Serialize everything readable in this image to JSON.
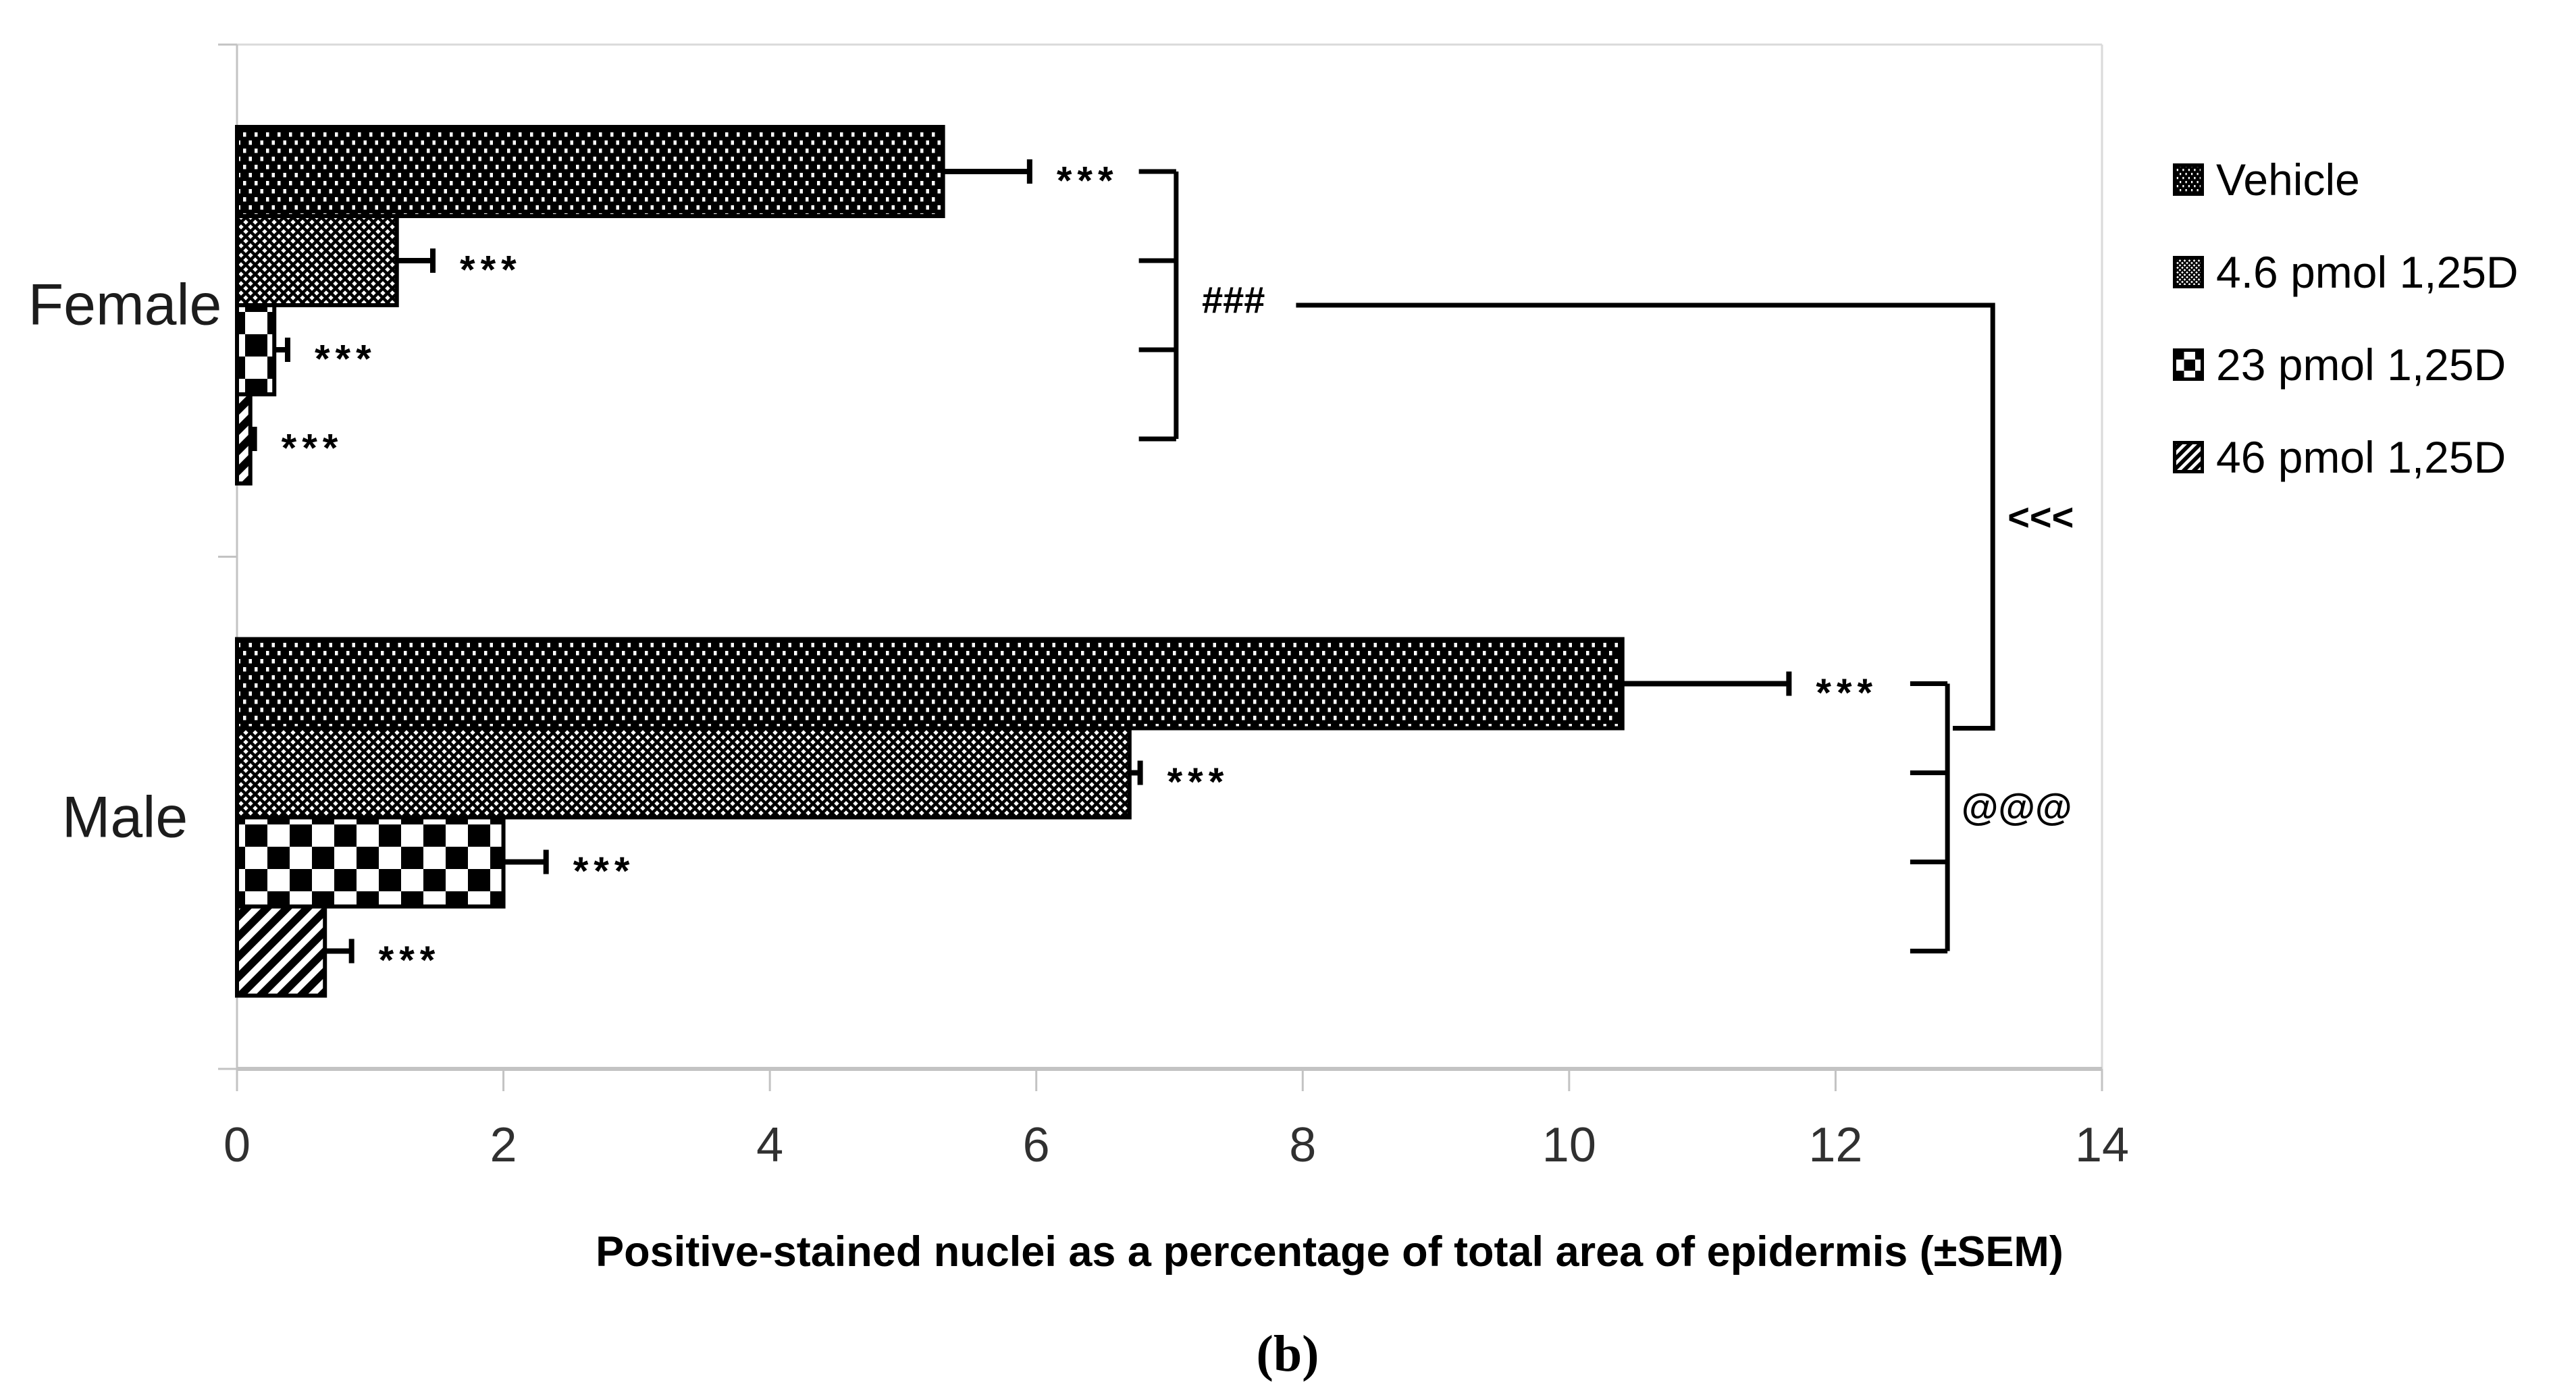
{
  "figure": {
    "caption": "(b)"
  },
  "chart_data": {
    "type": "bar",
    "orientation": "horizontal",
    "title": "Positive-stained nuclei as a percentage of total area of epidermis (±SEM)",
    "categories": [
      "Female",
      "Male"
    ],
    "series": [
      {
        "name": "Vehicle",
        "pattern": "dots-on-black",
        "values": [
          5.3,
          10.4
        ],
        "sem": [
          0.65,
          1.25
        ],
        "sig": [
          "***",
          "***"
        ]
      },
      {
        "name": "4.6 pmol 1,25D",
        "pattern": "fine-crosshatch",
        "values": [
          1.2,
          6.7
        ],
        "sem": [
          0.27,
          0.08
        ],
        "sig": [
          "***",
          "***"
        ]
      },
      {
        "name": "23 pmol 1,25D",
        "pattern": "checkerboard",
        "values": [
          0.28,
          2.0
        ],
        "sem": [
          0.1,
          0.32
        ],
        "sig": [
          "***",
          "***"
        ]
      },
      {
        "name": "46 pmol 1,25D",
        "pattern": "diagonal-stripes",
        "values": [
          0.1,
          0.66
        ],
        "sem": [
          0.03,
          0.2
        ],
        "sig": [
          "***",
          "***"
        ]
      }
    ],
    "x_axis": {
      "min": 0,
      "max": 14,
      "tick_step": 2,
      "ticks": [
        "0",
        "2",
        "4",
        "6",
        "8",
        "10",
        "12",
        "14"
      ]
    },
    "legend_position": "right",
    "grid": false,
    "annotations": [
      {
        "kind": "group-bracket",
        "category": 0,
        "x": 7.05,
        "tick_len": 0.28,
        "label": "###",
        "label_dx": 0.43,
        "label_dy": -8
      },
      {
        "kind": "group-bracket",
        "category": 1,
        "x": 12.84,
        "tick_len": 0.28,
        "label": "@@@",
        "label_dx": 0.52,
        "label_dy": -16
      },
      {
        "kind": "connector",
        "label": "<<<",
        "from_category": 0,
        "x_start": 7.95,
        "x_corner": 13.18,
        "to_category": 1,
        "to_bar": 0,
        "end_tick": 0.3,
        "label_dx": 0.36
      }
    ]
  }
}
